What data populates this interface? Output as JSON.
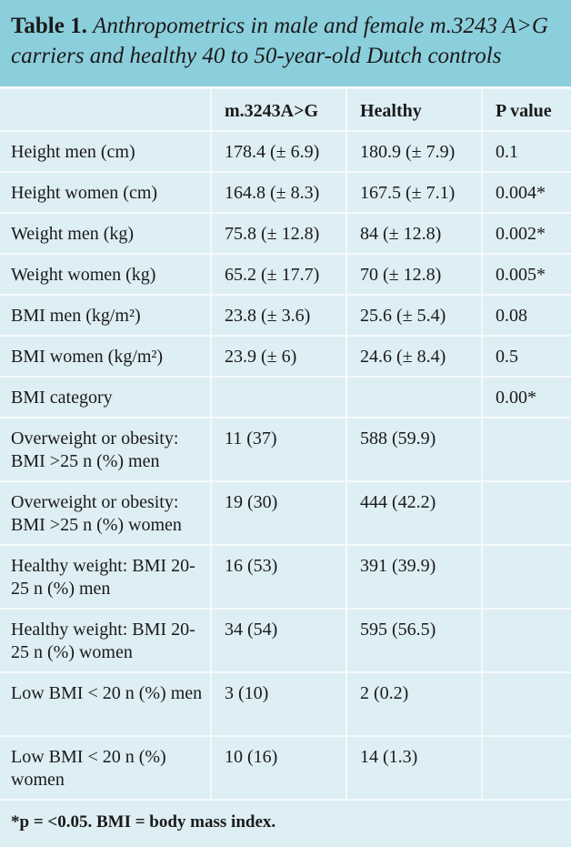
{
  "caption": {
    "label": "Table 1.",
    "title": "Anthropometrics in male and female m.3243 A>G carriers and healthy 40 to 50-year-old Dutch controls"
  },
  "columns": [
    "",
    "m.3243A>G",
    "Healthy",
    "P value"
  ],
  "rows": [
    {
      "label": "Height men (cm)",
      "carriers": "178.4 (± 6.9)",
      "healthy": "180.9 (± 7.9)",
      "p": "0.1"
    },
    {
      "label": "Height women (cm)",
      "carriers": "164.8 (± 8.3)",
      "healthy": "167.5 (± 7.1)",
      "p": "0.004*"
    },
    {
      "label": "Weight men (kg)",
      "carriers": "75.8 (± 12.8)",
      "healthy": "84 (± 12.8)",
      "p": "0.002*"
    },
    {
      "label": "Weight women (kg)",
      "carriers": "65.2 (± 17.7)",
      "healthy": "70 (± 12.8)",
      "p": "0.005*"
    },
    {
      "label": "BMI men (kg/m²)",
      "carriers": "23.8 (± 3.6)",
      "healthy": "25.6 (± 5.4)",
      "p": "0.08"
    },
    {
      "label": "BMI women (kg/m²)",
      "carriers": "23.9 (± 6)",
      "healthy": "24.6 (± 8.4)",
      "p": "0.5"
    },
    {
      "label": "BMI category",
      "carriers": "",
      "healthy": "",
      "p": "0.00*"
    },
    {
      "label": "Overweight or obesity: BMI >25 n (%) men",
      "carriers": "11 (37)",
      "healthy": "588 (59.9)",
      "p": ""
    },
    {
      "label": "Overweight or obesity: BMI >25 n (%) women",
      "carriers": "19 (30)",
      "healthy": "444 (42.2)",
      "p": ""
    },
    {
      "label": "Healthy weight: BMI 20-25 n (%) men",
      "carriers": "16 (53)",
      "healthy": "391 (39.9)",
      "p": ""
    },
    {
      "label": "Healthy weight: BMI 20-25 n (%) women",
      "carriers": "34 (54)",
      "healthy": "595 (56.5)",
      "p": ""
    },
    {
      "label": "Low BMI < 20 n (%) men",
      "carriers": "3 (10)",
      "healthy": "2 (0.2)",
      "p": ""
    },
    {
      "label": "Low BMI < 20 n (%) women",
      "carriers": "10 (16)",
      "healthy": "14 (1.3)",
      "p": ""
    }
  ],
  "footnote": "*p = <0.05. BMI = body mass index.",
  "colors": {
    "caption_bg": "#8ccfdc",
    "table_bg": "#ddeef4",
    "rule": "#f4fafc"
  }
}
